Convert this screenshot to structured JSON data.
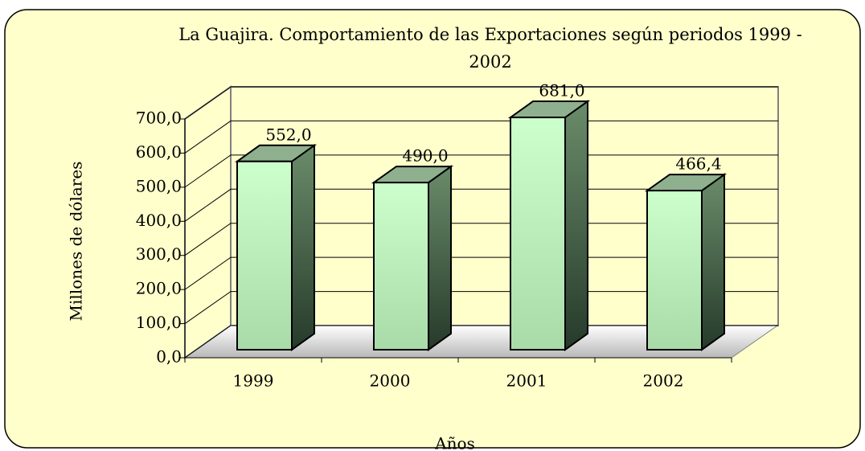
{
  "chart_data": {
    "type": "bar3d",
    "title": "La Guajira. Comportamiento de las Exportaciones según periodos 1999 - 2002",
    "x_label": "Años",
    "y_label": "Millones de dólares",
    "categories": [
      "1999",
      "2000",
      "2001",
      "2002"
    ],
    "values": [
      552.0,
      490.0,
      681.0,
      466.4
    ],
    "value_labels": [
      "552,0",
      "490,0",
      "681,0",
      "466,4"
    ],
    "ylim": [
      0,
      700
    ],
    "yticks": [
      {
        "value": 0,
        "label": "0,0"
      },
      {
        "value": 100,
        "label": "100,0"
      },
      {
        "value": 200,
        "label": "200,0"
      },
      {
        "value": 300,
        "label": "300,0"
      },
      {
        "value": 400,
        "label": "400,0"
      },
      {
        "value": 500,
        "label": "500,0"
      },
      {
        "value": 600,
        "label": "600,0"
      },
      {
        "value": 700,
        "label": "700,0"
      }
    ],
    "grid": true,
    "color": "#ccffcc"
  }
}
